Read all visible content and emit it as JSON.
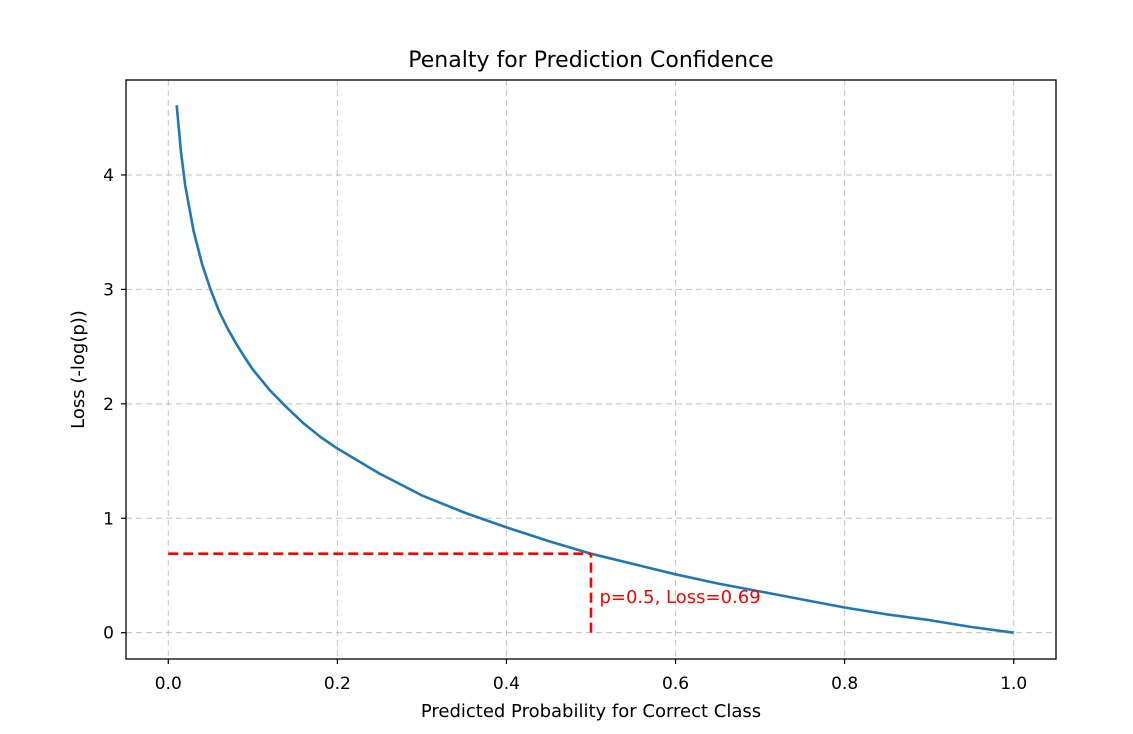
{
  "chart_data": {
    "type": "line",
    "title": "Penalty for Prediction Confidence",
    "xlabel": "Predicted Probability for Correct Class",
    "ylabel": "Loss (-log(p))",
    "xlim": [
      -0.05,
      1.05
    ],
    "ylim": [
      -0.23,
      4.83
    ],
    "x_ticks": [
      0.0,
      0.2,
      0.4,
      0.6,
      0.8,
      1.0
    ],
    "x_tick_labels": [
      "0.0",
      "0.2",
      "0.4",
      "0.6",
      "0.8",
      "1.0"
    ],
    "y_ticks": [
      0,
      1,
      2,
      3,
      4
    ],
    "y_tick_labels": [
      "0",
      "1",
      "2",
      "3",
      "4"
    ],
    "grid": true,
    "series": [
      {
        "color": "#1f77b4",
        "x": [
          0.01,
          0.015,
          0.02,
          0.03,
          0.04,
          0.05,
          0.06,
          0.07,
          0.08,
          0.09,
          0.1,
          0.12,
          0.14,
          0.16,
          0.18,
          0.2,
          0.25,
          0.3,
          0.35,
          0.4,
          0.45,
          0.5,
          0.55,
          0.6,
          0.65,
          0.7,
          0.75,
          0.8,
          0.85,
          0.9,
          0.95,
          1.0
        ],
        "y": [
          4.61,
          4.2,
          3.91,
          3.51,
          3.22,
          3.0,
          2.81,
          2.66,
          2.53,
          2.41,
          2.3,
          2.12,
          1.97,
          1.83,
          1.71,
          1.61,
          1.39,
          1.2,
          1.05,
          0.92,
          0.8,
          0.69,
          0.6,
          0.51,
          0.43,
          0.36,
          0.29,
          0.22,
          0.16,
          0.11,
          0.05,
          0.0
        ]
      }
    ],
    "reference_lines": [
      {
        "color": "#ff0000",
        "style": "dashed",
        "x": [
          0.0,
          0.5
        ],
        "y": [
          0.69,
          0.69
        ]
      },
      {
        "color": "#ff0000",
        "style": "dashed",
        "x": [
          0.5,
          0.5
        ],
        "y": [
          0.0,
          0.69
        ]
      }
    ],
    "annotations": [
      {
        "text": "p=0.5, Loss=0.69",
        "x": 0.51,
        "y": 0.26,
        "color": "#ff0000"
      }
    ]
  }
}
